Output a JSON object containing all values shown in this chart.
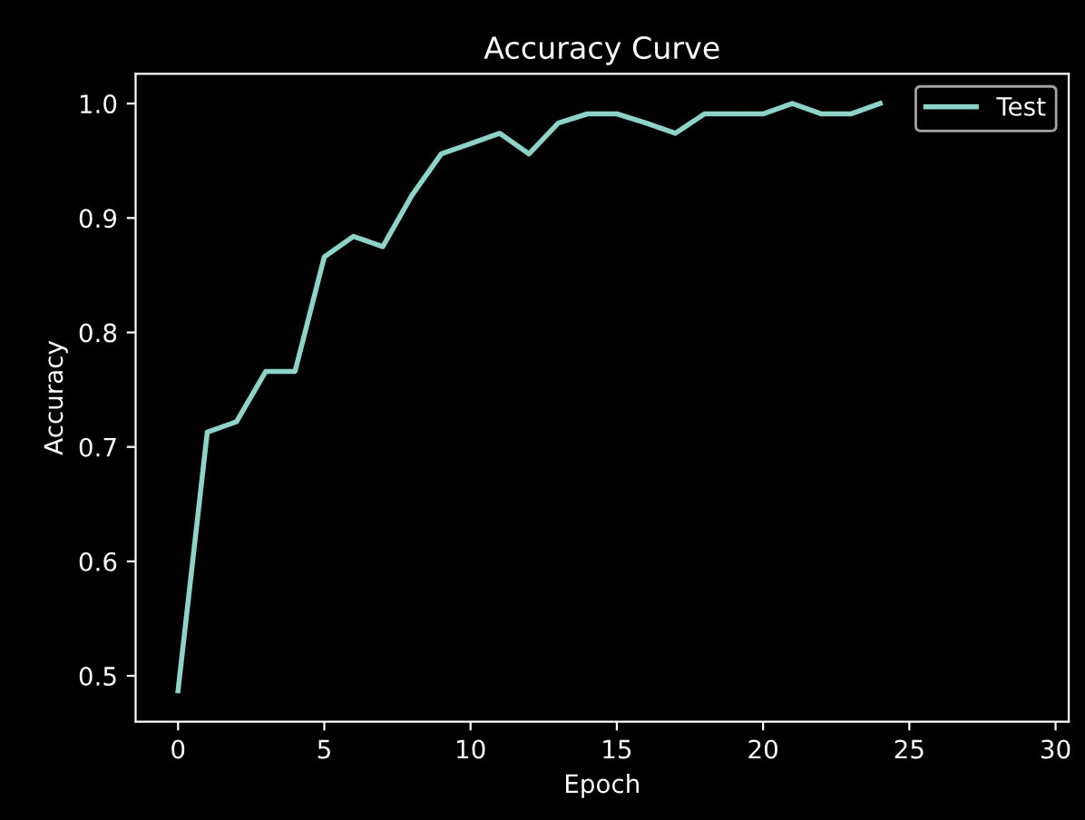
{
  "chart_data": {
    "type": "line",
    "title": "Accuracy Curve",
    "xlabel": "Epoch",
    "ylabel": "Accuracy",
    "x": [
      0,
      1,
      2,
      3,
      4,
      5,
      6,
      7,
      8,
      9,
      10,
      11,
      12,
      13,
      14,
      15,
      16,
      17,
      18,
      19,
      20,
      21,
      22,
      23,
      24
    ],
    "series": [
      {
        "name": "Test",
        "color": "#8dd3c7",
        "values": [
          0.487,
          0.713,
          0.722,
          0.766,
          0.766,
          0.866,
          0.884,
          0.875,
          0.92,
          0.956,
          0.965,
          0.974,
          0.956,
          0.983,
          0.991,
          0.991,
          0.983,
          0.974,
          0.991,
          0.991,
          0.991,
          1.0,
          0.991,
          0.991,
          1.0
        ]
      }
    ],
    "xlim": [
      -1.45,
      30.45
    ],
    "ylim": [
      0.46,
      1.026
    ],
    "xticks": [
      0,
      5,
      10,
      15,
      20,
      25,
      30
    ],
    "yticks": [
      0.5,
      0.6,
      0.7,
      0.8,
      0.9,
      {
        "value": 1,
        "label": "1.0"
      }
    ],
    "legend": "upper right",
    "grid": false
  }
}
